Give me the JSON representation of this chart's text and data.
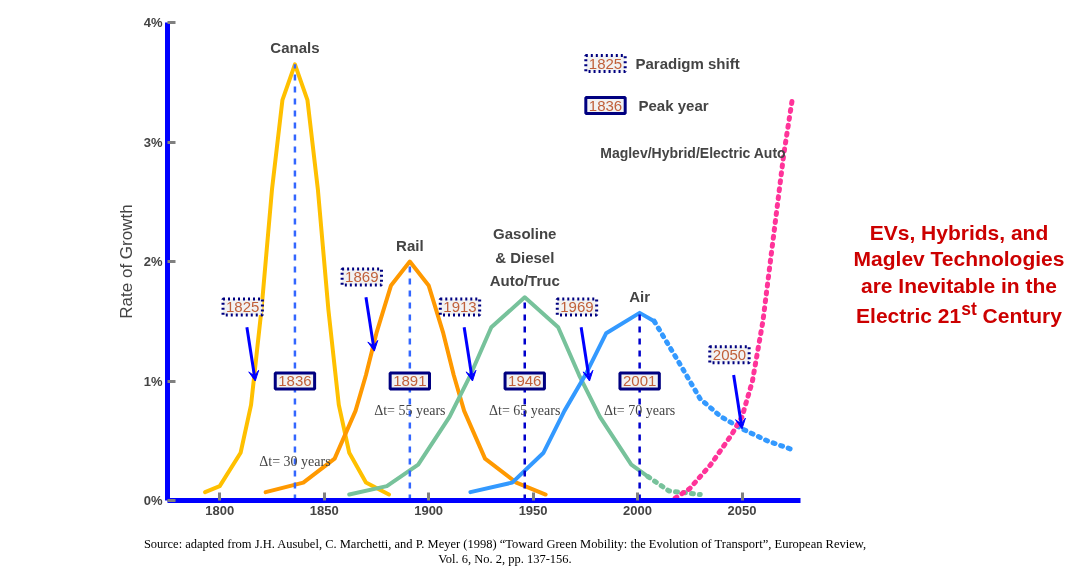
{
  "chart_data": {
    "type": "line",
    "ylabel": "Rate of Growth",
    "xlim": [
      1775,
      2078
    ],
    "ylim": [
      0,
      4
    ],
    "xticks": [
      1800,
      1850,
      1900,
      1950,
      2000,
      2050
    ],
    "yticks": [
      {
        "value": 0,
        "label": "0%"
      },
      {
        "value": 1,
        "label": "1%"
      },
      {
        "value": 2,
        "label": "2%"
      },
      {
        "value": 3,
        "label": "3%"
      },
      {
        "value": 4,
        "label": "4%"
      }
    ],
    "grid": false,
    "marker": "none",
    "line_style": "solid",
    "series": [
      {
        "name": "Canals",
        "color": "#ffc000",
        "x": [
          1793,
          1800,
          1810,
          1815,
          1820,
          1825,
          1830,
          1836,
          1842,
          1847,
          1852,
          1857,
          1862,
          1870,
          1881
        ],
        "values": [
          0.07,
          0.12,
          0.4,
          0.8,
          1.6,
          2.6,
          3.35,
          3.65,
          3.35,
          2.6,
          1.6,
          0.8,
          0.4,
          0.15,
          0.05
        ]
      },
      {
        "name": "Rail",
        "color": "#ff9900",
        "x": [
          1822,
          1840,
          1855,
          1865,
          1870,
          1875,
          1882,
          1891,
          1900,
          1907,
          1912,
          1917,
          1927,
          1942,
          1956
        ],
        "values": [
          0.07,
          0.15,
          0.35,
          0.75,
          1.05,
          1.4,
          1.8,
          2.0,
          1.8,
          1.4,
          1.05,
          0.75,
          0.35,
          0.15,
          0.05
        ]
      },
      {
        "name": "Gasoline\n& Diesel\nAuto/Truc",
        "color": "#77c29b",
        "x": [
          1862,
          1880,
          1895,
          1910,
          1920,
          1930,
          1946,
          1962,
          1972,
          1982,
          1997,
          2005
        ],
        "values": [
          0.05,
          0.12,
          0.3,
          0.7,
          1.05,
          1.45,
          1.7,
          1.45,
          1.05,
          0.7,
          0.3,
          0.2
        ]
      },
      {
        "color": "#77c29b",
        "line_style": "dotted",
        "x": [
          2005,
          2015,
          2030
        ],
        "values": [
          0.2,
          0.08,
          0.05
        ]
      },
      {
        "name": "Air",
        "color": "#3399ff",
        "x": [
          1920,
          1940,
          1955,
          1965,
          1975,
          1985,
          2001,
          2008
        ],
        "values": [
          0.07,
          0.15,
          0.4,
          0.75,
          1.05,
          1.4,
          1.57,
          1.5
        ]
      },
      {
        "color": "#3399ff",
        "line_style": "dotted",
        "x": [
          2008,
          2020,
          2030,
          2040,
          2050,
          2062,
          2075
        ],
        "values": [
          1.5,
          1.15,
          0.85,
          0.7,
          0.6,
          0.5,
          0.42
        ]
      },
      {
        "name": "Maglev/Hybrid/Electric Auto",
        "color": "#ff3399",
        "line_style": "dotted",
        "x": [
          2018,
          2025,
          2035,
          2045,
          2050,
          2055,
          2060,
          2065,
          2070,
          2074
        ],
        "values": [
          0.02,
          0.1,
          0.3,
          0.55,
          0.7,
          1.0,
          1.5,
          2.2,
          2.9,
          3.35
        ]
      }
    ],
    "ref_lines": [
      {
        "axis": "x",
        "value": 1836,
        "color": "#3366ff",
        "line_style": "dashed"
      },
      {
        "axis": "x",
        "value": 1891,
        "color": "#3366ff",
        "line_style": "dashed"
      },
      {
        "axis": "x",
        "value": 1946,
        "color": "#0000cc",
        "line_style": "dashed"
      },
      {
        "axis": "x",
        "value": 2001,
        "color": "#0000cc",
        "line_style": "dashed"
      }
    ],
    "annotations": [
      {
        "text": "1825",
        "x": 1817,
        "y": 1.0
      },
      {
        "text": "1869",
        "x": 1874,
        "y": 1.25
      },
      {
        "text": "1913",
        "x": 1921,
        "y": 1.0
      },
      {
        "text": "1969",
        "x": 1977,
        "y": 1.0
      },
      {
        "text": "2050",
        "x": 2050,
        "y": 0.6
      },
      {
        "text": "1836",
        "x": 1836,
        "y": 1.0
      },
      {
        "text": "Δt= 30 years",
        "x": 1836,
        "y": 0.33
      },
      {
        "text": "1891",
        "x": 1891,
        "y": 1.0
      },
      {
        "text": "Δt= 55 years",
        "x": 1891,
        "y": 0.75
      },
      {
        "text": "1946",
        "x": 1946,
        "y": 1.0
      },
      {
        "text": "Δt= 65 years",
        "x": 1946,
        "y": 0.75
      },
      {
        "text": "2001",
        "x": 2001,
        "y": 1.0
      },
      {
        "text": "Δt= 70 years",
        "x": 2001,
        "y": 0.75
      },
      "Paradigm shift",
      "Peak year",
      "EVs, Hybrids, and\nMaglev Technologies\nare Inevitable in the\nElectric 21$^{st}$ Century",
      "Source:  adapted from J.H. Ausubel, C. Marchetti, and P. Meyer  (1998) “Toward Green Mobility: the Evolution of Transport”, European Review,\nVol. 6, No. 2, pp. 137-156."
    ]
  }
}
